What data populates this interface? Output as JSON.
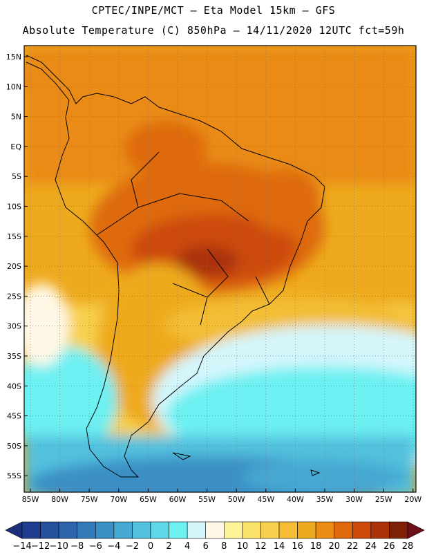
{
  "header": {
    "line1": "CPTEC/INPE/MCT –  Eta Model 15km – GFS",
    "line2": "Absolute Temperature (C) 850hPa – 14/11/2020 12UTC fct=59h"
  },
  "map": {
    "lon_labels": [
      "85W",
      "80W",
      "75W",
      "70W",
      "65W",
      "60W",
      "55W",
      "50W",
      "45W",
      "40W",
      "35W",
      "30W",
      "25W",
      "20W"
    ],
    "lat_labels": [
      "15N",
      "10N",
      "5N",
      "EQ",
      "5S",
      "10S",
      "15S",
      "20S",
      "25S",
      "30S",
      "35S",
      "40S",
      "45S",
      "50S",
      "55S"
    ]
  },
  "colorbar": {
    "ticks": [
      "-14",
      "-12",
      "-10",
      "-8",
      "-6",
      "-4",
      "-2",
      "0",
      "2",
      "4",
      "6",
      "8",
      "10",
      "12",
      "14",
      "16",
      "18",
      "20",
      "22",
      "24",
      "26",
      "28"
    ],
    "colors": [
      "#1f3d8f",
      "#25509c",
      "#2d64ab",
      "#3479b8",
      "#3a8fc4",
      "#46a8d2",
      "#52c1de",
      "#5ed8e8",
      "#6df0f2",
      "#d4f6fb",
      "#fff8e6",
      "#fff39a",
      "#fbe26a",
      "#f7d04e",
      "#f3be35",
      "#eeaa1e",
      "#e98b14",
      "#de6a0d",
      "#cc4a0a",
      "#a93208",
      "#7e2107"
    ]
  }
}
